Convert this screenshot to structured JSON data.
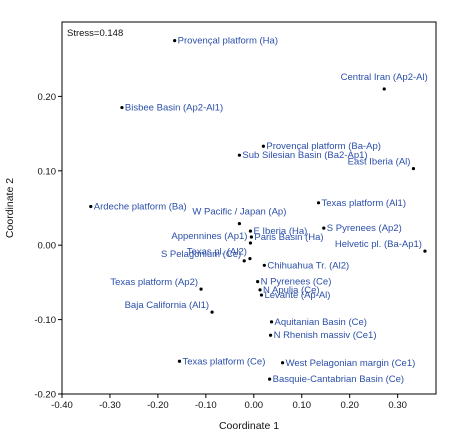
{
  "chart_data": {
    "type": "scatter",
    "annotation": "Stress=0.148",
    "xlabel": "Coordinate 1",
    "ylabel": "Coordinate 2",
    "xlim": [
      -0.4,
      0.38
    ],
    "ylim": [
      -0.2,
      0.3
    ],
    "xticks": [
      {
        "v": -0.4,
        "label": "-0.40"
      },
      {
        "v": -0.3,
        "label": "-0.30"
      },
      {
        "v": -0.2,
        "label": "-0.20"
      },
      {
        "v": -0.1,
        "label": "-0.10"
      },
      {
        "v": 0.0,
        "label": "0.00"
      },
      {
        "v": 0.1,
        "label": "0.10"
      },
      {
        "v": 0.2,
        "label": "0.20"
      },
      {
        "v": 0.3,
        "label": "0.30"
      }
    ],
    "yticks": [
      {
        "v": 0.2,
        "label": "0.20"
      },
      {
        "v": 0.1,
        "label": "0.10"
      },
      {
        "v": 0.0,
        "label": "0.00"
      },
      {
        "v": -0.1,
        "label": "-0.10"
      },
      {
        "v": -0.2,
        "label": "-0.20"
      }
    ],
    "grid": false,
    "marker_color": "#000000",
    "label_color": "#2b4fa8",
    "points": [
      {
        "label": "Provençal platform (Ha)",
        "x": -0.165,
        "y": 0.275,
        "anchor": "start"
      },
      {
        "label": "Central Iran (Ap2-Al)",
        "x": 0.272,
        "y": 0.21,
        "anchor": "center"
      },
      {
        "label": "Bisbee Basin (Ap2-Al1)",
        "x": -0.275,
        "y": 0.185,
        "anchor": "start"
      },
      {
        "label": "Provençal platform (Ba-Ap)",
        "x": 0.02,
        "y": 0.133,
        "anchor": "start"
      },
      {
        "label": "Sub Silesian Basin (Ba2-Ap1)",
        "x": -0.03,
        "y": 0.121,
        "anchor": "start"
      },
      {
        "label": "East Iberia (Al)",
        "x": 0.333,
        "y": 0.103,
        "anchor": "end"
      },
      {
        "label": "Ardeche platform (Ba)",
        "x": -0.34,
        "y": 0.052,
        "anchor": "start"
      },
      {
        "label": "Texas platform (Al1)",
        "x": 0.135,
        "y": 0.057,
        "anchor": "start"
      },
      {
        "label": "W Pacific / Japan (Ap)",
        "x": -0.03,
        "y": 0.029,
        "anchor": "center"
      },
      {
        "label": "S Pyrenees (Ap2)",
        "x": 0.146,
        "y": 0.023,
        "anchor": "start"
      },
      {
        "label": "E Iberia (Ha)",
        "x": -0.007,
        "y": 0.019,
        "anchor": "start"
      },
      {
        "label": "Appennines (Ap1)",
        "x": -0.007,
        "y": 0.003,
        "anchor": "end"
      },
      {
        "label": "Paris Basin (Ha)",
        "x": -0.005,
        "y": 0.011,
        "anchor": "start"
      },
      {
        "label": "Helvetic pl. (Ba-Ap1)",
        "x": 0.357,
        "y": -0.008,
        "anchor": "end"
      },
      {
        "label": "S Pelagonium (Ce)",
        "x": -0.02,
        "y": -0.021,
        "anchor": "end"
      },
      {
        "label": "Texas pl. (Al2)",
        "x": -0.008,
        "y": -0.018,
        "anchor": "end"
      },
      {
        "label": "Chihuahua Tr. (Al2)",
        "x": 0.022,
        "y": -0.027,
        "anchor": "start"
      },
      {
        "label": "Texas platform (Ap2)",
        "x": -0.11,
        "y": -0.059,
        "anchor": "end"
      },
      {
        "label": "N Pyrenees (Ce)",
        "x": 0.008,
        "y": -0.049,
        "anchor": "start"
      },
      {
        "label": "N Apulia (Ce)",
        "x": 0.013,
        "y": -0.06,
        "anchor": "start"
      },
      {
        "label": "Levante (Ap-Al)",
        "x": 0.016,
        "y": -0.067,
        "anchor": "start"
      },
      {
        "label": "Baja California (Al1)",
        "x": -0.087,
        "y": -0.09,
        "anchor": "end"
      },
      {
        "label": "Aquitanian Basin (Ce)",
        "x": 0.037,
        "y": -0.103,
        "anchor": "start"
      },
      {
        "label": "N Rhenish massiv (Ce1)",
        "x": 0.035,
        "y": -0.121,
        "anchor": "start"
      },
      {
        "label": "Texas platform (Ce)",
        "x": -0.155,
        "y": -0.156,
        "anchor": "start"
      },
      {
        "label": "West Pelagonian margin (Ce1)",
        "x": 0.06,
        "y": -0.158,
        "anchor": "start"
      },
      {
        "label": "Basquie-Cantabrian Basin (Ce)",
        "x": 0.033,
        "y": -0.18,
        "anchor": "start"
      }
    ]
  }
}
